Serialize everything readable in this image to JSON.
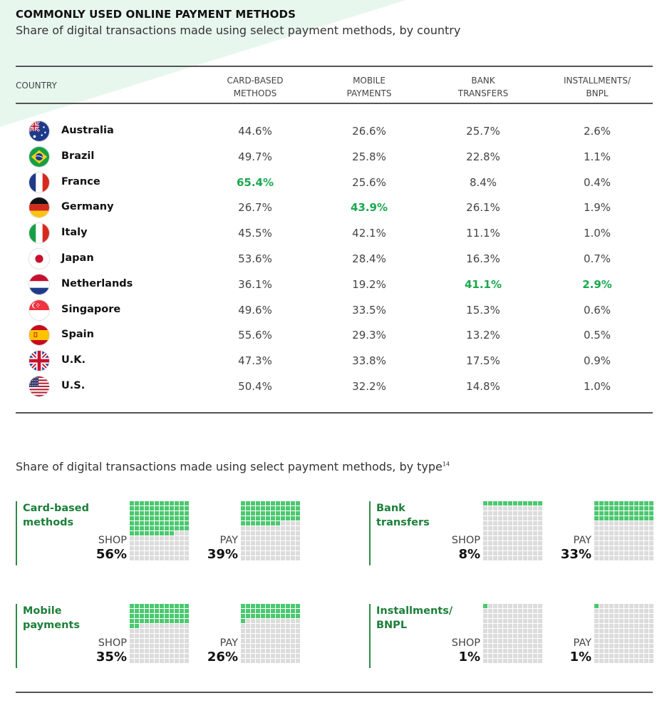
{
  "header": {
    "title": "COMMONLY USED ONLINE PAYMENT METHODS",
    "subtitle": "Share of digital transactions made using select payment methods, by country"
  },
  "colors": {
    "highlight": "#1aa84f",
    "waffle_on": "#4cc870",
    "waffle_off": "#dcdcdc",
    "group_label": "#1d7f3a",
    "background_tint": "#e8f7ee"
  },
  "table": {
    "columns": [
      "COUNTRY",
      "CARD-BASED\nMETHODS",
      "MOBILE\nPAYMENTS",
      "BANK\nTRANSFERS",
      "INSTALLMENTS/\nBNPL"
    ],
    "rows": [
      {
        "country": "Australia",
        "flag": "australia-flag-icon",
        "values": [
          "44.6%",
          "26.6%",
          "25.7%",
          "2.6%"
        ]
      },
      {
        "country": "Brazil",
        "flag": "brazil-flag-icon",
        "values": [
          "49.7%",
          "25.8%",
          "22.8%",
          "1.1%"
        ]
      },
      {
        "country": "France",
        "flag": "france-flag-icon",
        "values": [
          "65.4%",
          "25.6%",
          "8.4%",
          "0.4%"
        ]
      },
      {
        "country": "Germany",
        "flag": "germany-flag-icon",
        "values": [
          "26.7%",
          "43.9%",
          "26.1%",
          "1.9%"
        ]
      },
      {
        "country": "Italy",
        "flag": "italy-flag-icon",
        "values": [
          "45.5%",
          "42.1%",
          "11.1%",
          "1.0%"
        ]
      },
      {
        "country": "Japan",
        "flag": "japan-flag-icon",
        "values": [
          "53.6%",
          "28.4%",
          "16.3%",
          "0.7%"
        ]
      },
      {
        "country": "Netherlands",
        "flag": "netherlands-flag-icon",
        "values": [
          "36.1%",
          "19.2%",
          "41.1%",
          "2.9%"
        ]
      },
      {
        "country": "Singapore",
        "flag": "singapore-flag-icon",
        "values": [
          "49.6%",
          "33.5%",
          "15.3%",
          "0.6%"
        ]
      },
      {
        "country": "Spain",
        "flag": "spain-flag-icon",
        "values": [
          "55.6%",
          "29.3%",
          "13.2%",
          "0.5%"
        ]
      },
      {
        "country": "U.K.",
        "flag": "uk-flag-icon",
        "values": [
          "47.3%",
          "33.8%",
          "17.5%",
          "0.9%"
        ]
      },
      {
        "country": "U.S.",
        "flag": "us-flag-icon",
        "values": [
          "50.4%",
          "32.2%",
          "14.8%",
          "1.0%"
        ]
      }
    ],
    "highlighted": {
      "France": [
        0
      ],
      "Germany": [
        1
      ],
      "Netherlands": [
        2,
        3
      ]
    }
  },
  "section2": {
    "subtitle": "Share of digital transactions made using select payment methods, by type",
    "footnote": "14"
  },
  "chart_data": [
    {
      "type": "table",
      "title": "COMMONLY USED ONLINE PAYMENT METHODS",
      "subtitle": "Share of digital transactions made using select payment methods, by country",
      "columns": [
        "CARD-BASED METHODS",
        "MOBILE PAYMENTS",
        "BANK TRANSFERS",
        "INSTALLMENTS/BNPL"
      ],
      "categories": [
        "Australia",
        "Brazil",
        "France",
        "Germany",
        "Italy",
        "Japan",
        "Netherlands",
        "Singapore",
        "Spain",
        "U.K.",
        "U.S."
      ],
      "series": [
        {
          "name": "CARD-BASED METHODS",
          "values": [
            44.6,
            49.7,
            65.4,
            26.7,
            45.5,
            53.6,
            36.1,
            49.6,
            55.6,
            47.3,
            50.4
          ]
        },
        {
          "name": "MOBILE PAYMENTS",
          "values": [
            26.6,
            25.8,
            25.6,
            43.9,
            42.1,
            28.4,
            19.2,
            33.5,
            29.3,
            33.8,
            32.2
          ]
        },
        {
          "name": "BANK TRANSFERS",
          "values": [
            25.7,
            22.8,
            8.4,
            26.1,
            11.1,
            16.3,
            41.1,
            15.3,
            13.2,
            17.5,
            14.8
          ]
        },
        {
          "name": "INSTALLMENTS/BNPL",
          "values": [
            2.6,
            1.1,
            0.4,
            1.9,
            1.0,
            0.7,
            2.9,
            0.6,
            0.5,
            0.9,
            1.0
          ]
        }
      ]
    },
    {
      "type": "waffle",
      "title": "Share of digital transactions made using select payment methods, by type",
      "groups": [
        {
          "label": "Card-based\nmethods",
          "shop_label": "SHOP",
          "shop": 56,
          "shop_text": "56%",
          "pay_label": "PAY",
          "pay": 39,
          "pay_text": "39%"
        },
        {
          "label": "Bank\ntransfers",
          "shop_label": "SHOP",
          "shop": 8,
          "shop_text": "8%",
          "pay_label": "PAY",
          "pay": 33,
          "pay_text": "33%"
        },
        {
          "label": "Mobile\npayments",
          "shop_label": "SHOP",
          "shop": 35,
          "shop_text": "35%",
          "pay_label": "PAY",
          "pay": 26,
          "pay_text": "26%"
        },
        {
          "label": "Installments/\nBNPL",
          "shop_label": "SHOP",
          "shop": 1,
          "shop_text": "1%",
          "pay_label": "PAY",
          "pay": 1,
          "pay_text": "1%"
        }
      ]
    }
  ]
}
